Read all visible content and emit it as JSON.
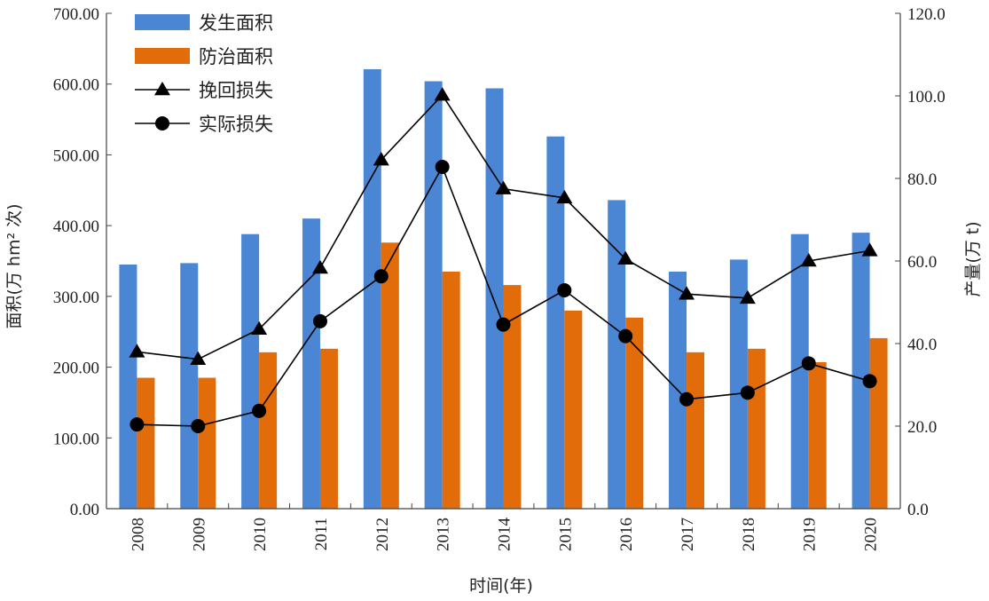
{
  "chart_data": {
    "type": "bar",
    "xlabel": "时间(年)",
    "ylabel_left": "面积(万 hm² 次)",
    "ylabel_right": "产量(万 t)",
    "ylim_left": [
      0,
      700
    ],
    "ylim_right": [
      0,
      120
    ],
    "yticks_left": [
      "0.00",
      "100.00",
      "200.00",
      "300.00",
      "400.00",
      "500.00",
      "600.00",
      "700.00"
    ],
    "yticks_right": [
      "0.0",
      "20.0",
      "40.0",
      "60.0",
      "80.0",
      "100.0",
      "120.0"
    ],
    "categories": [
      "2008",
      "2009",
      "2010",
      "2011",
      "2012",
      "2013",
      "2014",
      "2015",
      "2016",
      "2017",
      "2018",
      "2019",
      "2020"
    ],
    "grid": false,
    "legend_position": "top-left",
    "series": [
      {
        "name": "发生面积",
        "type": "bar",
        "axis": "left",
        "color": "#4a86d4",
        "values": [
          345,
          347,
          388,
          410,
          621,
          604,
          594,
          526,
          436,
          335,
          352,
          388,
          390
        ]
      },
      {
        "name": "防治面积",
        "type": "bar",
        "axis": "left",
        "color": "#e36c0a",
        "values": [
          185,
          185,
          221,
          226,
          376,
          335,
          316,
          280,
          270,
          221,
          226,
          207,
          241
        ]
      },
      {
        "name": "挽回损失",
        "type": "line",
        "marker": "triangle",
        "axis": "right",
        "color": "#000000",
        "values": [
          38.0,
          36.2,
          43.5,
          58.3,
          84.5,
          100.2,
          77.5,
          75.3,
          60.5,
          52.0,
          51.0,
          60.0,
          62.5
        ]
      },
      {
        "name": "实际损失",
        "type": "line",
        "marker": "circle",
        "axis": "right",
        "color": "#000000",
        "values": [
          20.4,
          20.0,
          23.7,
          45.4,
          56.3,
          82.8,
          44.6,
          52.9,
          41.8,
          26.5,
          28.1,
          35.2,
          30.9
        ]
      }
    ]
  }
}
